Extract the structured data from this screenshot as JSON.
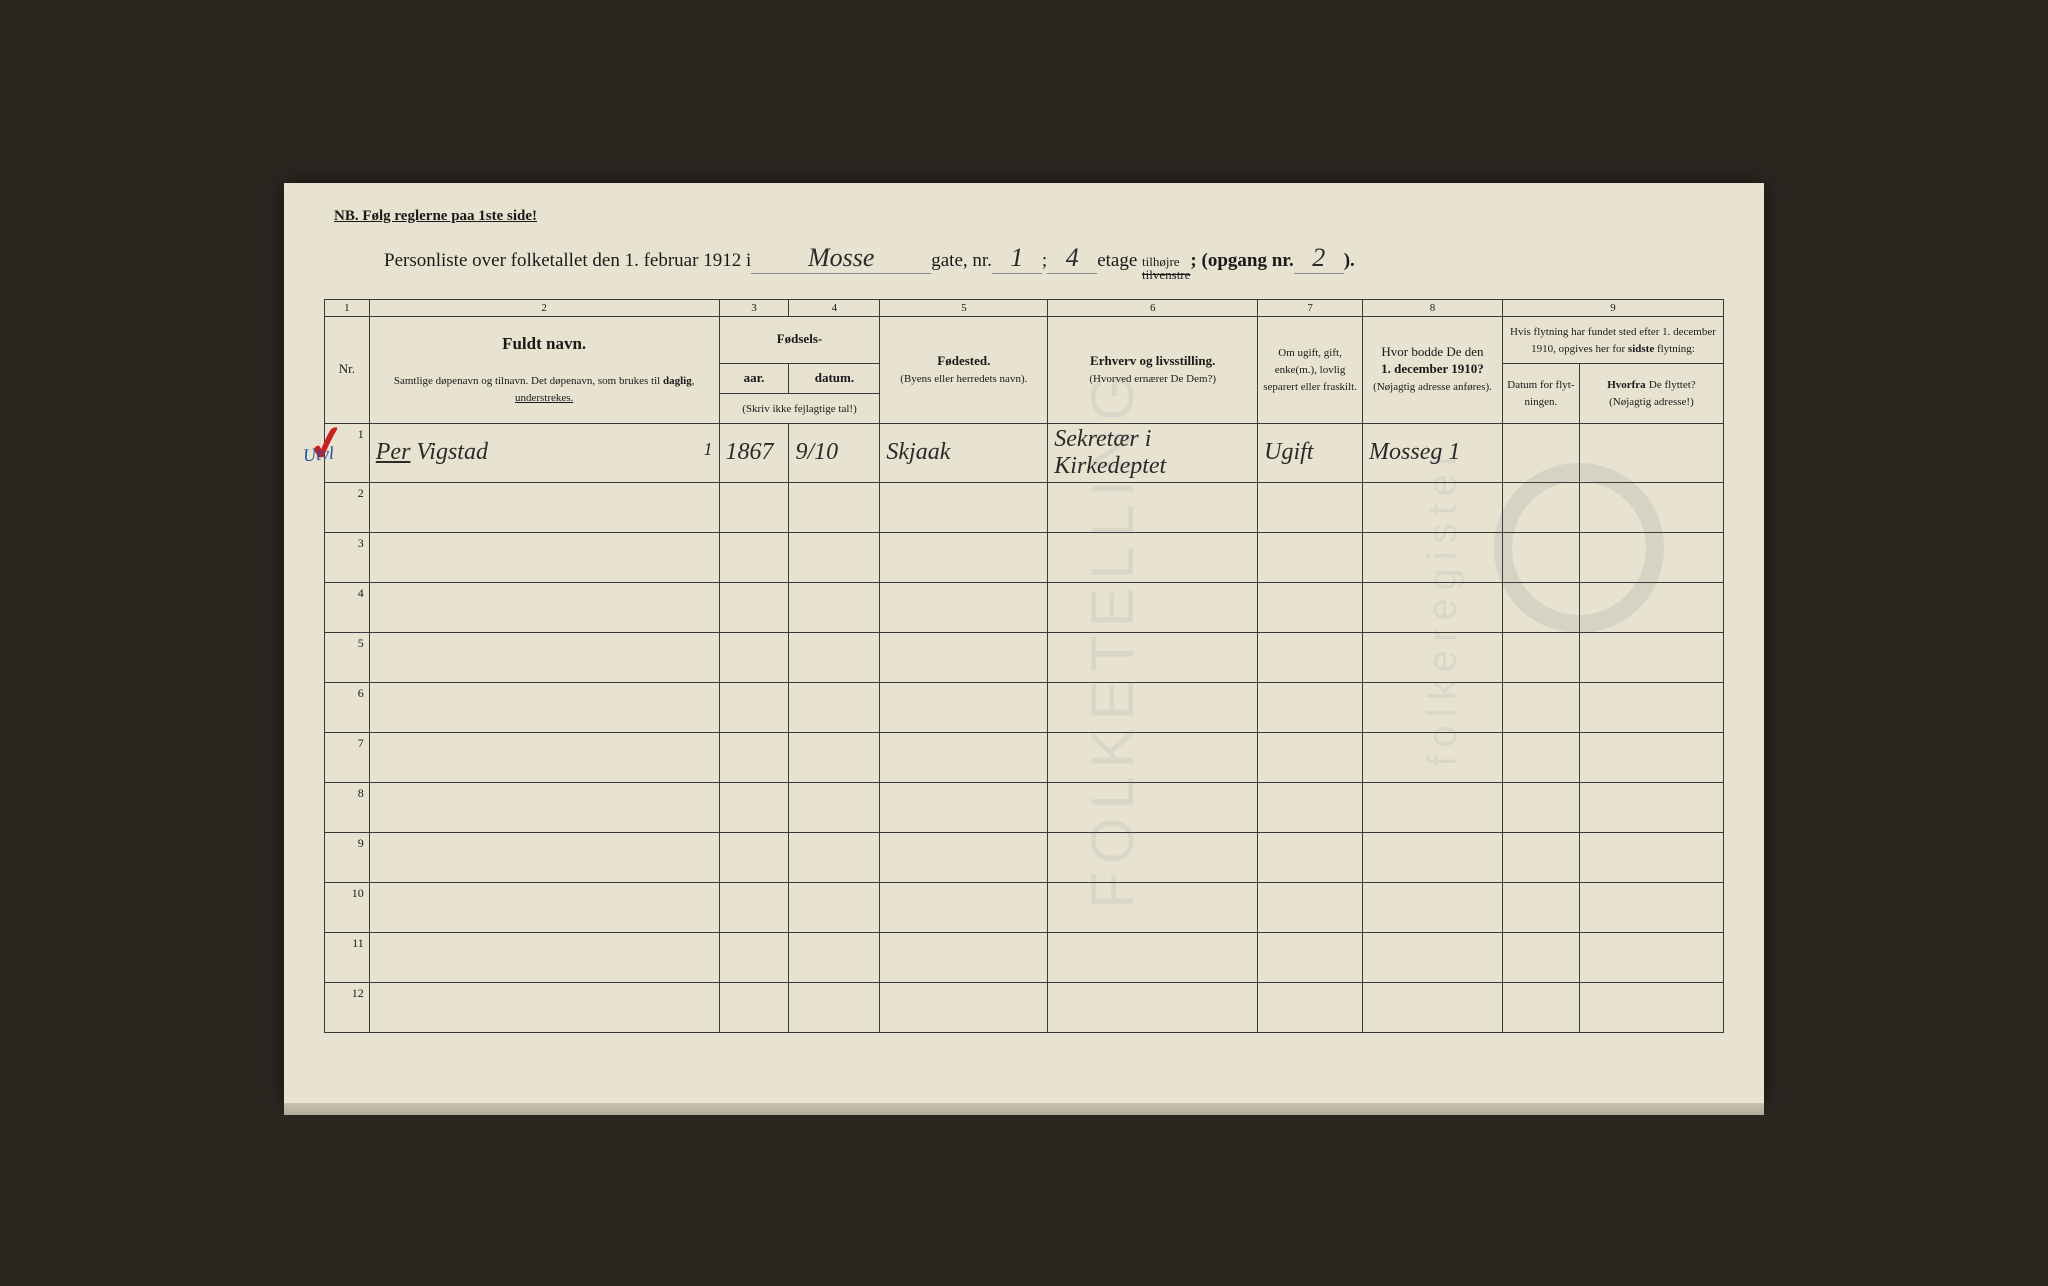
{
  "header": {
    "nb": "NB.   Følg reglerne paa 1ste side!",
    "title_prefix": "Personliste over folketallet den 1. februar 1912 i",
    "street": "Mosse",
    "gate_label": "gate, nr.",
    "gate_nr": "1",
    "separator": ";",
    "etage_nr": "4",
    "etage_label": "etage",
    "side_top": "tilhøjre",
    "side_bot": "tilvenstre",
    "opgang_label": "(opgang nr.",
    "opgang_nr": "2",
    "closing": ")."
  },
  "colnums": [
    "1",
    "2",
    "3",
    "4",
    "5",
    "6",
    "7",
    "8",
    "9"
  ],
  "columns": {
    "nr": "Nr.",
    "name_title": "Fuldt navn.",
    "name_sub": "Samtlige døpenavn og tilnavn. Det døpenavn, som brukes til <b>daglig</b>, <u>understrekes.</u>",
    "birth_title": "Fødsels-",
    "birth_year": "aar.",
    "birth_date": "datum.",
    "birth_note": "(Skriv ikke fejlagtige tal!)",
    "birthplace_title": "Fødested.",
    "birthplace_sub": "(Byens eller herredets navn).",
    "occupation_title": "Erhverv og livsstilling.",
    "occupation_sub": "(Hvorved ernærer De Dem?)",
    "marital": "Om ugift, gift, enke(m.), lovlig separert eller fraskilt.",
    "residence_title": "Hvor bodde De den",
    "residence_date": "1. december 1910?",
    "residence_sub": "(Nøjagtig adresse anføres).",
    "move_title": "Hvis flytning har fundet sted efter 1. december 1910, opgives her for <b>sidste</b> flytning:",
    "move_date": "Datum for flyt-ningen.",
    "move_from_title": "Hvorfra",
    "move_from_rest": "De flyttet?",
    "move_from_sub": "(Nøjagtig adresse!)",
    "annotation": "Utvl"
  },
  "widths": {
    "nr": "3.2%",
    "name": "25%",
    "year": "5%",
    "date": "6.5%",
    "birthplace": "12%",
    "occupation": "15%",
    "marital": "7.5%",
    "residence": "10%",
    "move_date": "5.5%",
    "move_from": "10.3%"
  },
  "rows": [
    {
      "nr": "1",
      "name": "Per Vigstad",
      "mark": "1",
      "year": "1867",
      "date": "9/10",
      "birthplace": "Skjaak",
      "occupation": "Sekretær i Kirkedeptet",
      "marital": "Ugift",
      "residence": "Mosseg 1",
      "move_date": "",
      "move_from": ""
    },
    {
      "nr": "2"
    },
    {
      "nr": "3"
    },
    {
      "nr": "4"
    },
    {
      "nr": "5"
    },
    {
      "nr": "6"
    },
    {
      "nr": "7"
    },
    {
      "nr": "8"
    },
    {
      "nr": "9"
    },
    {
      "nr": "10"
    },
    {
      "nr": "11"
    },
    {
      "nr": "12"
    }
  ],
  "colors": {
    "paper": "#e8e2d0",
    "ink": "#1a1a1a",
    "handwriting": "#2a2a2a",
    "red_mark": "#c82020",
    "blue_mark": "#2050a0",
    "border": "#3a3a3a"
  }
}
